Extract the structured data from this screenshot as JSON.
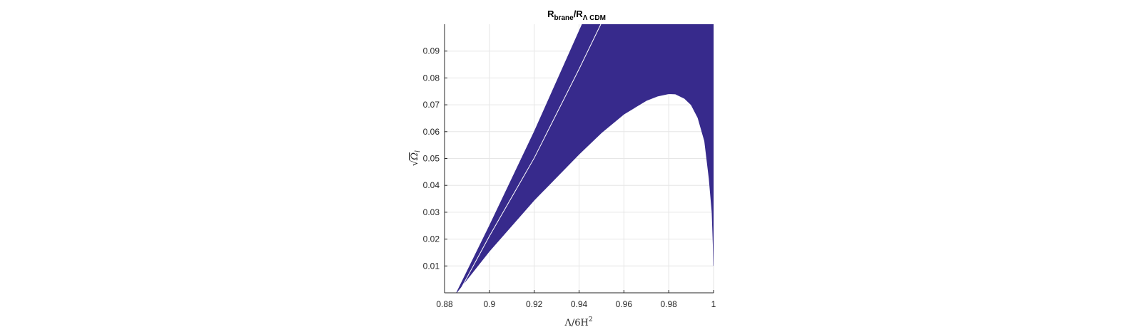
{
  "chart_data": {
    "type": "area",
    "title": {
      "main": "R",
      "sub1": "brane",
      "mid": "/R",
      "sub2": "Λ CDM"
    },
    "xlabel": {
      "main": "Λ/6H",
      "sup": "2"
    },
    "ylabel": {
      "root": "√",
      "main": "Ω",
      "sub": "l"
    },
    "xlim": [
      0.88,
      1.0
    ],
    "ylim": [
      0.0,
      0.1
    ],
    "xticks": [
      0.88,
      0.9,
      0.92,
      0.94,
      0.96,
      0.98,
      1.0
    ],
    "xtick_labels": [
      "0.88",
      "0.9",
      "0.92",
      "0.94",
      "0.96",
      "0.98",
      "1"
    ],
    "yticks": [
      0.01,
      0.02,
      0.03,
      0.04,
      0.05,
      0.06,
      0.07,
      0.08,
      0.09
    ],
    "ytick_labels": [
      "0.01",
      "0.02",
      "0.03",
      "0.04",
      "0.05",
      "0.06",
      "0.07",
      "0.08",
      "0.09"
    ],
    "grid": true,
    "fill_color": "#372a8c",
    "region_outer_upper": [
      [
        0.8853,
        0.0
      ],
      [
        0.9,
        0.0249
      ],
      [
        0.92,
        0.06
      ],
      [
        0.94,
        0.0974
      ],
      [
        0.9414,
        0.1
      ]
    ],
    "region_outer_lower": [
      [
        0.8853,
        0.0
      ],
      [
        0.9,
        0.0155
      ],
      [
        0.92,
        0.0345
      ],
      [
        0.94,
        0.0516
      ],
      [
        0.95,
        0.0596
      ],
      [
        0.96,
        0.0665
      ],
      [
        0.97,
        0.0716
      ],
      [
        0.975,
        0.0732
      ],
      [
        0.98,
        0.0741
      ],
      [
        0.983,
        0.074
      ],
      [
        0.987,
        0.0724
      ],
      [
        0.99,
        0.07
      ],
      [
        0.993,
        0.0652
      ],
      [
        0.996,
        0.0565
      ],
      [
        0.998,
        0.0426
      ],
      [
        0.9993,
        0.03
      ],
      [
        0.9998,
        0.0178
      ],
      [
        1.0,
        0.0101
      ]
    ],
    "gap_curve": [
      [
        0.8863,
        0.0
      ],
      [
        0.9,
        0.0211
      ],
      [
        0.92,
        0.0502
      ],
      [
        0.94,
        0.0833
      ],
      [
        0.9497,
        0.1
      ]
    ]
  }
}
